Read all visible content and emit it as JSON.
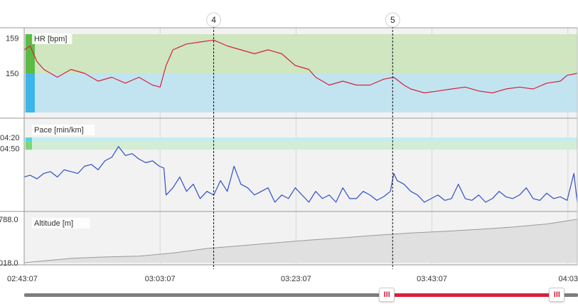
{
  "colors": {
    "hr_line": "#d0243c",
    "pace_line": "#2f4fc7",
    "altitude_fill": "#e0e0e0",
    "zone_green": "#cfe6c1",
    "zone_blue": "#c2e4f0",
    "pace_zone_cyan": "#c6ecef",
    "pace_zone_green": "#d3ecd4",
    "marker_green": "#5dbb44",
    "marker_blue": "#3cb6e8",
    "marker_cyan": "#4fd6dc",
    "marker_lgreen": "#7ed67a",
    "range_selected": "#d81f3b",
    "range_track": "#7d7d7d"
  },
  "slider": {
    "handle_left": "III",
    "handle_right": "III",
    "selected_start": 0.655,
    "selected_end": 0.962
  },
  "chart_data": {
    "type": "line",
    "x_ticks": [
      "02:43:07",
      "03:03:07",
      "03:23:07",
      "03:43:07",
      "04:03"
    ],
    "x_range": [
      "02:43:07",
      "04:04:30"
    ],
    "grid": true,
    "laps": [
      {
        "label": "4",
        "time": "03:11:00"
      },
      {
        "label": "5",
        "time": "03:37:20"
      }
    ],
    "panels": [
      {
        "name": "hr",
        "label": "HR [bpm]",
        "y_ticks": [
          "159",
          "150"
        ],
        "y_tick_values": [
          159,
          150
        ],
        "ylim": [
          140,
          160
        ],
        "zones": [
          {
            "from": 150,
            "to": 160,
            "color": "#cfe6c1"
          },
          {
            "from": 140,
            "to": 150,
            "color": "#c2e4f0"
          }
        ],
        "series": [
          {
            "x": [
              "02:43:07",
              "02:44:00",
              "02:45:00",
              "02:46:00",
              "02:48:00",
              "02:50:00",
              "02:52:00",
              "02:54:00",
              "02:56:00",
              "02:58:00",
              "03:00:00",
              "03:02:00",
              "03:03:07",
              "03:04:00",
              "03:05:00",
              "03:07:00",
              "03:09:00",
              "03:11:00",
              "03:13:00",
              "03:15:00",
              "03:17:00",
              "03:19:00",
              "03:21:00",
              "03:23:00",
              "03:25:00",
              "03:26:00",
              "03:28:00",
              "03:30:00",
              "03:32:00",
              "03:34:00",
              "03:36:00",
              "03:37:30",
              "03:39:00",
              "03:40:00",
              "03:42:00",
              "03:44:00",
              "03:46:00",
              "03:48:00",
              "03:50:00",
              "03:52:00",
              "03:54:00",
              "03:56:00",
              "03:58:00",
              "04:00:00",
              "04:02:00",
              "04:03:00",
              "04:04:30"
            ],
            "values": [
              156,
              157,
              153,
              151,
              149,
              151,
              150,
              148,
              149,
              147.5,
              149,
              147,
              146.5,
              152,
              156,
              157.5,
              158,
              158.5,
              157,
              156,
              155,
              156,
              155,
              152,
              151,
              149,
              147,
              148,
              147,
              147,
              148.5,
              149,
              147,
              146,
              145,
              145.5,
              146,
              146.5,
              145.5,
              145,
              146,
              146.5,
              146,
              147.5,
              148,
              149.5,
              150
            ]
          }
        ]
      },
      {
        "name": "pace",
        "label": "Pace [min/km]",
        "y_ticks": [
          "04:20",
          "04:50"
        ],
        "ylim": [
          "07:30",
          "03:50"
        ],
        "zones": [
          {
            "from": "04:20",
            "to": "04:32",
            "color": "#c6ecef"
          },
          {
            "from": "04:32",
            "to": "04:54",
            "color": "#d3ecd4"
          }
        ],
        "series": [
          {
            "x": [
              "02:43:07",
              "02:44:00",
              "02:45:00",
              "02:46:00",
              "02:47:00",
              "02:48:00",
              "02:49:00",
              "02:50:00",
              "02:51:00",
              "02:52:00",
              "02:53:00",
              "02:54:00",
              "02:55:00",
              "02:56:00",
              "02:57:00",
              "02:58:00",
              "02:59:00",
              "03:00:00",
              "03:01:00",
              "03:02:00",
              "03:03:00",
              "03:03:40",
              "03:04:00",
              "03:05:00",
              "03:06:00",
              "03:07:00",
              "03:08:00",
              "03:09:00",
              "03:10:00",
              "03:11:00",
              "03:12:00",
              "03:13:00",
              "03:14:00",
              "03:15:00",
              "03:16:00",
              "03:17:00",
              "03:18:00",
              "03:19:00",
              "03:20:00",
              "03:21:00",
              "03:22:00",
              "03:23:00",
              "03:24:00",
              "03:25:00",
              "03:26:00",
              "03:27:00",
              "03:28:00",
              "03:29:00",
              "03:30:00",
              "03:31:00",
              "03:32:00",
              "03:33:00",
              "03:34:00",
              "03:35:00",
              "03:36:00",
              "03:37:00",
              "03:37:30",
              "03:38:00",
              "03:39:00",
              "03:40:00",
              "03:41:00",
              "03:42:00",
              "03:43:00",
              "03:44:00",
              "03:45:00",
              "03:46:00",
              "03:47:00",
              "03:48:00",
              "03:49:00",
              "03:50:00",
              "03:51:00",
              "03:52:00",
              "03:53:00",
              "03:54:00",
              "03:55:00",
              "03:56:00",
              "03:57:00",
              "03:58:00",
              "03:59:00",
              "04:00:00",
              "04:01:00",
              "04:02:00",
              "04:03:00",
              "04:04:00",
              "04:04:30"
            ],
            "values": [
              "06:10",
              "06:05",
              "06:15",
              "06:00",
              "05:55",
              "06:10",
              "05:50",
              "05:55",
              "06:00",
              "05:40",
              "05:35",
              "05:50",
              "05:25",
              "05:15",
              "04:45",
              "05:10",
              "05:05",
              "05:20",
              "05:30",
              "05:25",
              "05:40",
              "05:45",
              "07:00",
              "06:40",
              "06:10",
              "06:50",
              "06:30",
              "07:10",
              "06:50",
              "07:00",
              "06:20",
              "06:50",
              "05:40",
              "06:30",
              "06:40",
              "07:00",
              "06:50",
              "06:40",
              "07:20",
              "07:00",
              "07:10",
              "06:40",
              "07:00",
              "07:20",
              "06:50",
              "07:10",
              "07:00",
              "07:20",
              "06:40",
              "07:10",
              "07:10",
              "06:50",
              "07:00",
              "07:15",
              "07:05",
              "06:50",
              "06:00",
              "06:20",
              "06:30",
              "06:50",
              "07:00",
              "07:20",
              "07:10",
              "07:00",
              "07:15",
              "07:10",
              "06:30",
              "07:10",
              "07:15",
              "07:00",
              "07:20",
              "07:10",
              "06:50",
              "07:05",
              "07:10",
              "07:00",
              "06:40",
              "07:10",
              "07:15",
              "06:55",
              "07:10",
              "07:05",
              "07:15",
              "06:00",
              "07:20"
            ]
          }
        ]
      },
      {
        "name": "altitude",
        "label": "Altitude [m]",
        "y_ticks": [
          "788.0",
          "018.0"
        ],
        "y_tick_values": [
          788.0,
          18.0
        ],
        "ylim": [
          18.0,
          788.0
        ],
        "series": [
          {
            "x": [
              "02:43:07",
              "02:50:00",
              "02:55:00",
              "03:00:00",
              "03:05:00",
              "03:10:00",
              "03:15:00",
              "03:20:00",
              "03:25:00",
              "03:30:00",
              "03:35:00",
              "03:40:00",
              "03:45:00",
              "03:50:00",
              "03:55:00",
              "04:00:00",
              "04:04:30"
            ],
            "values": [
              18,
              95,
              120,
              135,
              190,
              270,
              320,
              370,
              420,
              460,
              505,
              545,
              575,
              610,
              650,
              705,
              788
            ]
          }
        ]
      }
    ]
  }
}
